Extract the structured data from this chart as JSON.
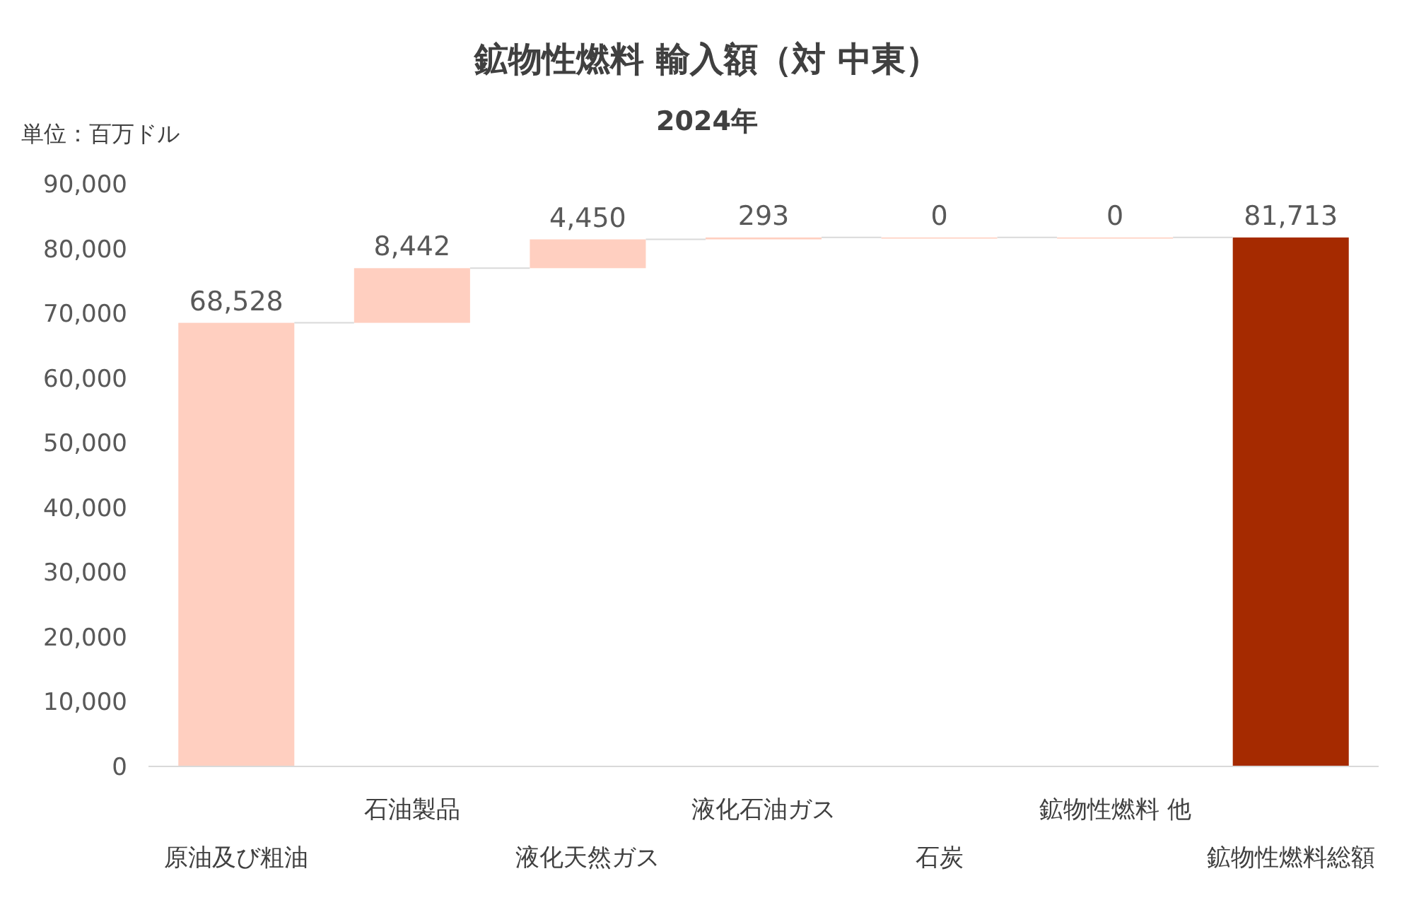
{
  "chart_data": {
    "type": "bar",
    "title": "鉱物性燃料 輸入額（対 中東）",
    "subtitle": "2024年",
    "ylabel": "単位：百万ドル",
    "categories": [
      "原油及び粗油",
      "石油製品",
      "液化天然ガス",
      "液化石油ガス",
      "石炭",
      "鉱物性燃料 他",
      "鉱物性燃料総額"
    ],
    "values": [
      68528,
      8442,
      4450,
      293,
      0,
      0,
      81713
    ],
    "base": [
      0,
      68528,
      76970,
      81420,
      81713,
      81713,
      0
    ],
    "colors": [
      "#ffcfc0",
      "#ffcfc0",
      "#ffcfc0",
      "#ffcfc0",
      "#ffcfc0",
      "#ffcfc0",
      "#a52a00"
    ],
    "value_labels": [
      "68,528",
      "8,442",
      "4,450",
      "293",
      "0",
      "0",
      "81,713"
    ],
    "ylim": [
      0,
      90000
    ],
    "yticks": [
      {
        "value": 0,
        "label": "0"
      },
      {
        "value": 10000,
        "label": "10,000"
      },
      {
        "value": 20000,
        "label": "20,000"
      },
      {
        "value": 30000,
        "label": "30,000"
      },
      {
        "value": 40000,
        "label": "40,000"
      },
      {
        "value": 50000,
        "label": "50,000"
      },
      {
        "value": 60000,
        "label": "60,000"
      },
      {
        "value": 70000,
        "label": "70,000"
      },
      {
        "value": 80000,
        "label": "80,000"
      },
      {
        "value": 90000,
        "label": "90,000"
      }
    ]
  }
}
